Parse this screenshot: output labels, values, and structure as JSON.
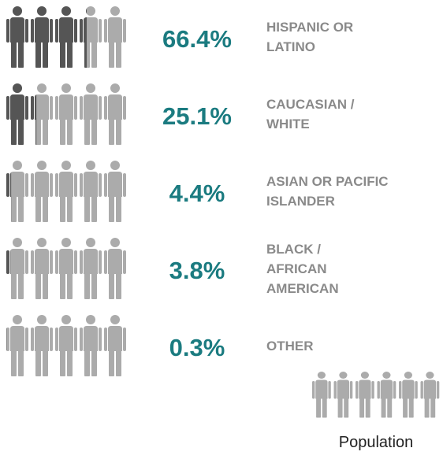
{
  "chart_data": {
    "type": "pictogram",
    "categories": [
      "HISPANIC OR\nLATINO",
      "CAUCASIAN /\nWHITE",
      "ASIAN OR PACIFIC\nISLANDER",
      "BLACK /\nAFRICAN\nAMERICAN",
      "OTHER"
    ],
    "values": [
      66.4,
      25.1,
      4.4,
      3.8,
      0.3
    ],
    "value_labels": [
      "66.4%",
      "25.1%",
      "4.4%",
      "3.8%",
      "0.3%"
    ],
    "xlim": [
      0,
      100
    ],
    "color": "#555555",
    "base_color": "#ababab",
    "value_color": "#1b7b80",
    "label_color": "#8a8a8a",
    "legend_label": "Population"
  }
}
